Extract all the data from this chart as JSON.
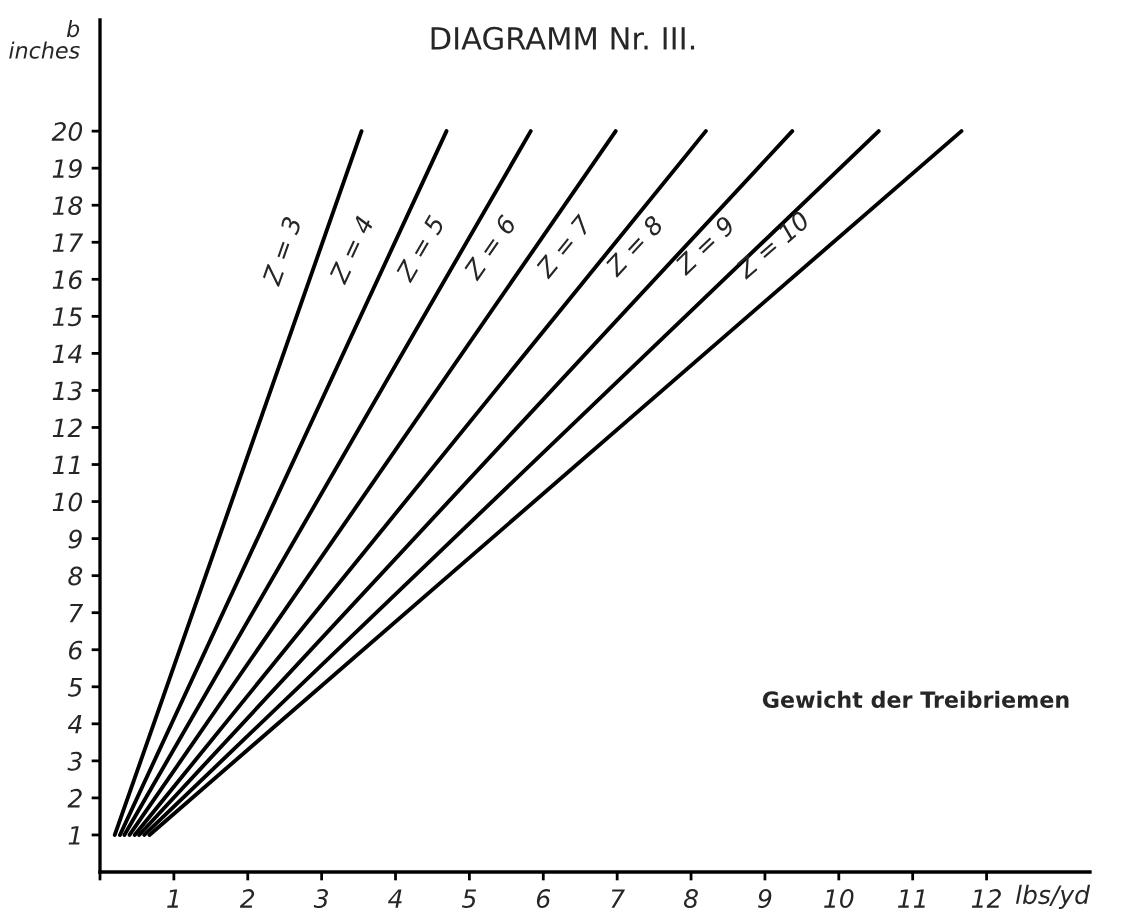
{
  "chart_data": {
    "type": "line",
    "title": "DIAGRAMM Nr. III.",
    "xlabel": "lbs/yd",
    "ylabel": "b\ninches",
    "annotations": [
      "Gewicht der Treibriemen"
    ],
    "series": [
      {
        "name": "Z = 3",
        "color": "#000000",
        "x": [
          0.2,
          3.54
        ],
        "values": [
          1,
          20
        ]
      },
      {
        "name": "Z = 4",
        "color": "#000000",
        "x": [
          0.27,
          4.69
        ],
        "values": [
          1,
          20
        ]
      },
      {
        "name": "Z = 5",
        "color": "#000000",
        "x": [
          0.33,
          5.83
        ],
        "values": [
          1,
          20
        ]
      },
      {
        "name": "Z = 6",
        "color": "#000000",
        "x": [
          0.4,
          6.98
        ],
        "values": [
          1,
          20
        ]
      },
      {
        "name": "Z = 7",
        "color": "#000000",
        "x": [
          0.47,
          8.2
        ],
        "values": [
          1,
          20
        ]
      },
      {
        "name": "Z = 8",
        "color": "#000000",
        "x": [
          0.53,
          9.37
        ],
        "values": [
          1,
          20
        ]
      },
      {
        "name": "Z = 9",
        "color": "#000000",
        "x": [
          0.6,
          10.54
        ],
        "values": [
          1,
          20
        ]
      },
      {
        "name": "Z = 10",
        "color": "#000000",
        "x": [
          0.67,
          11.66
        ],
        "values": [
          1,
          20
        ]
      }
    ],
    "xlim": [
      0,
      13.4
    ],
    "ylim": [
      0,
      23
    ],
    "xticks": [
      {
        "value": 0,
        "label": null
      },
      1,
      2,
      3,
      4,
      5,
      6,
      7,
      8,
      9,
      10,
      11,
      12
    ],
    "yticks": [
      1,
      2,
      3,
      4,
      5,
      6,
      7,
      8,
      9,
      10,
      11,
      12,
      13,
      14,
      15,
      16,
      17,
      18,
      19,
      20
    ],
    "grid": false,
    "legend": false,
    "marker": "none",
    "line_style": "solid"
  }
}
